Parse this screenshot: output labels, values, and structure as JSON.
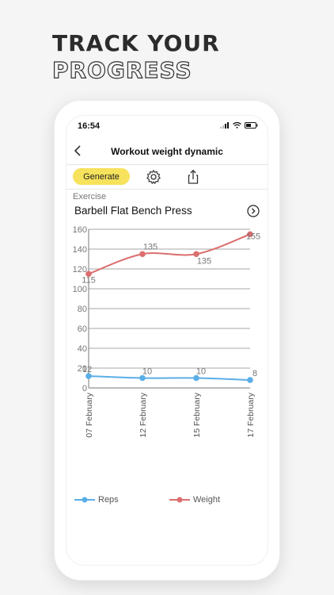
{
  "headline": {
    "line1": "TRACK YOUR",
    "line2": "PROGRESS"
  },
  "status": {
    "time": "16:54"
  },
  "nav": {
    "title": "Workout weight dynamic"
  },
  "toolbar": {
    "generate_label": "Generate"
  },
  "exercise": {
    "label": "Exercise",
    "name": "Barbell Flat Bench Press"
  },
  "colors": {
    "reps": "#5aaee6",
    "weight": "#dc6e6e",
    "generate": "#f6e25c"
  },
  "icons": {
    "back": "chevron-left-icon",
    "settings": "gear-icon",
    "share": "share-icon",
    "arrow": "chevron-right-circle-icon"
  },
  "chart_data": {
    "type": "line",
    "categories": [
      "07 February",
      "12 February",
      "15 February",
      "17 February"
    ],
    "ylim": [
      0,
      160
    ],
    "yticks": [
      0,
      20,
      40,
      60,
      80,
      100,
      120,
      140,
      160
    ],
    "series": [
      {
        "name": "Reps",
        "values": [
          12,
          10,
          10,
          8
        ],
        "color": "#5aaee6"
      },
      {
        "name": "Weight",
        "values": [
          115,
          135,
          135,
          155
        ],
        "color": "#dc6e6e"
      }
    ],
    "legend": "bottom",
    "grid": true
  }
}
